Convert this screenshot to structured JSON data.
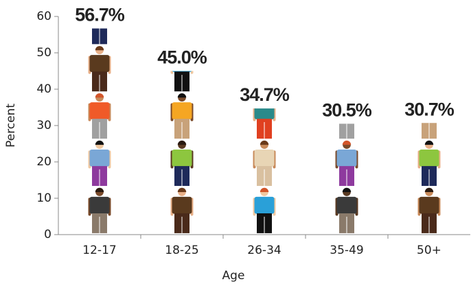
{
  "chart_data": {
    "type": "pictograph",
    "xlabel": "Age",
    "ylabel": "Percent",
    "categories": [
      "12-17",
      "18-25",
      "26-34",
      "35-49",
      "50+"
    ],
    "values": [
      56.7,
      45.0,
      34.7,
      30.5,
      30.7
    ],
    "value_labels": [
      "56.7%",
      "45.0%",
      "34.7%",
      "30.5%",
      "30.7%"
    ],
    "ylim": [
      0,
      60
    ],
    "yticks": [
      0,
      10,
      20,
      30,
      40,
      50,
      60
    ],
    "grid": false
  }
}
